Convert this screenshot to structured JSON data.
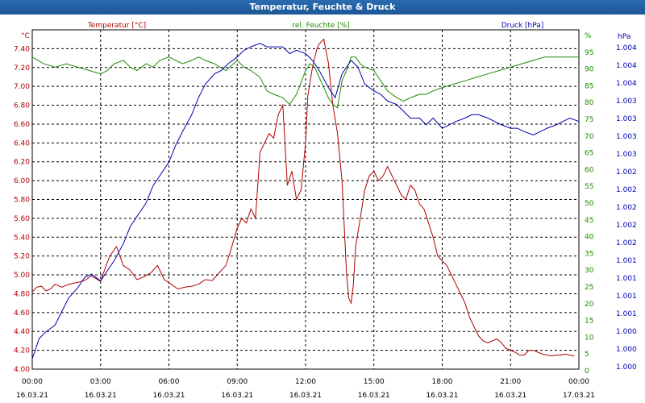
{
  "window_title": "Temperatur, Feuchte & Druck",
  "chart_data": {
    "type": "line",
    "title": "Temperatur, Feuchte & Druck",
    "grid": true,
    "x_ticks": [
      {
        "hour": 0,
        "time": "00:00",
        "date": "16.03.21"
      },
      {
        "hour": 3,
        "time": "03:00",
        "date": "16.03.21"
      },
      {
        "hour": 6,
        "time": "06:00",
        "date": "16.03.21"
      },
      {
        "hour": 9,
        "time": "09:00",
        "date": "16.03.21"
      },
      {
        "hour": 12,
        "time": "12:00",
        "date": "16.03.21"
      },
      {
        "hour": 15,
        "time": "15:00",
        "date": "16.03.21"
      },
      {
        "hour": 18,
        "time": "18:00",
        "date": "16.03.21"
      },
      {
        "hour": 21,
        "time": "21:00",
        "date": "16.03.21"
      },
      {
        "hour": 24,
        "time": "00:00",
        "date": "17.03.21"
      }
    ],
    "xlim": [
      0,
      24
    ],
    "axes": {
      "temperature": {
        "unit": "°C",
        "ylim": [
          4.0,
          7.6
        ],
        "color": "#b00000",
        "tick_labels": [
          "4.00",
          "4.20",
          "4.40",
          "4.60",
          "4.80",
          "5.00",
          "5.20",
          "5.40",
          "5.60",
          "5.80",
          "6.00",
          "6.20",
          "6.40",
          "6.60",
          "6.80",
          "7.00",
          "7.20",
          "7.40"
        ]
      },
      "humidity": {
        "unit": "%",
        "ylim": [
          0,
          100
        ],
        "color": "#1e8a00",
        "tick_labels": [
          "0",
          "5",
          "10",
          "15",
          "20",
          "25",
          "30",
          "35",
          "40",
          "45",
          "50",
          "55",
          "60",
          "65",
          "70",
          "75",
          "80",
          "85",
          "90",
          "95",
          "%"
        ]
      },
      "pressure": {
        "unit": "hPa",
        "color": "#0000b0",
        "tick_labels": [
          "1.000",
          "1.000",
          "1.000",
          "1.001",
          "1.001",
          "1.001",
          "1.001",
          "1.002",
          "1.002",
          "1.002",
          "1.002",
          "1.002",
          "1.003",
          "1.003",
          "1.003",
          "1.003",
          "1.004",
          "1.004",
          "1.004"
        ]
      }
    },
    "series": [
      {
        "name": "Temperatur [°C]",
        "axis": "temperature",
        "color": "#b00000",
        "x": [
          0,
          0.2,
          0.4,
          0.6,
          0.8,
          1,
          1.3,
          1.6,
          2,
          2.3,
          2.6,
          3,
          3.2,
          3.4,
          3.7,
          4,
          4.3,
          4.6,
          4.9,
          5.2,
          5.5,
          5.8,
          6.1,
          6.4,
          6.7,
          7,
          7.3,
          7.6,
          7.9,
          8.2,
          8.5,
          8.7,
          9,
          9.2,
          9.4,
          9.6,
          9.8,
          10,
          10.2,
          10.4,
          10.6,
          10.8,
          11,
          11.2,
          11.4,
          11.6,
          11.8,
          12,
          12.1,
          12.3,
          12.5,
          12.6,
          12.8,
          13,
          13.2,
          13.4,
          13.6,
          13.8,
          13.9,
          14,
          14.1,
          14.2,
          14.4,
          14.6,
          14.8,
          15,
          15.2,
          15.4,
          15.6,
          15.8,
          16,
          16.2,
          16.4,
          16.6,
          16.8,
          17,
          17.2,
          17.4,
          17.6,
          17.8,
          18,
          18.2,
          18.4,
          18.6,
          18.8,
          19,
          19.2,
          19.4,
          19.6,
          19.8,
          20,
          20.2,
          20.4,
          20.6,
          20.8,
          21,
          21.2,
          21.4,
          21.6,
          21.8,
          22,
          22.2,
          22.4,
          22.6,
          22.8,
          23,
          23.2,
          23.4,
          23.6,
          23.8
        ],
        "y": [
          4.82,
          4.87,
          4.88,
          4.83,
          4.85,
          4.9,
          4.87,
          4.9,
          4.92,
          4.94,
          4.99,
          4.93,
          5.07,
          5.2,
          5.3,
          5.1,
          5.05,
          4.95,
          4.98,
          5.02,
          5.1,
          4.95,
          4.9,
          4.85,
          4.87,
          4.88,
          4.9,
          4.95,
          4.94,
          5.02,
          5.1,
          5.25,
          5.5,
          5.6,
          5.55,
          5.7,
          5.6,
          6.3,
          6.4,
          6.5,
          6.45,
          6.7,
          6.8,
          5.95,
          6.1,
          5.8,
          5.9,
          6.4,
          6.9,
          7.2,
          7.4,
          7.45,
          7.5,
          7.25,
          6.8,
          6.5,
          6.0,
          5.0,
          4.75,
          4.7,
          4.9,
          5.3,
          5.6,
          5.9,
          6.05,
          6.1,
          6.0,
          6.05,
          6.15,
          6.05,
          5.95,
          5.85,
          5.8,
          5.95,
          5.9,
          5.75,
          5.7,
          5.55,
          5.4,
          5.2,
          5.15,
          5.1,
          5.0,
          4.9,
          4.8,
          4.7,
          4.55,
          4.45,
          4.35,
          4.3,
          4.28,
          4.3,
          4.32,
          4.28,
          4.22,
          4.2,
          4.18,
          4.15,
          4.15,
          4.2,
          4.2,
          4.18,
          4.16,
          4.15,
          4.14,
          4.15,
          4.15,
          4.16,
          4.15,
          4.14
        ]
      },
      {
        "name": "rel. Feuchte [%]",
        "axis": "humidity",
        "color": "#1e8a00",
        "x": [
          0,
          0.5,
          1,
          1.5,
          2,
          2.5,
          3,
          3.3,
          3.6,
          4,
          4.3,
          4.6,
          5,
          5.3,
          5.6,
          6,
          6.3,
          6.6,
          7,
          7.3,
          7.6,
          8,
          8.5,
          9,
          9.3,
          9.6,
          10,
          10.3,
          10.6,
          11,
          11.3,
          11.6,
          12,
          12.2,
          12.4,
          12.6,
          12.8,
          13,
          13.2,
          13.4,
          13.6,
          13.8,
          14,
          14.2,
          14.4,
          14.6,
          15,
          15.3,
          15.6,
          16,
          16.3,
          16.6,
          17,
          17.3,
          17.6,
          18,
          18.5,
          19,
          19.5,
          20,
          20.5,
          21,
          21.5,
          22,
          22.5,
          23,
          23.5,
          24
        ],
        "y": [
          92,
          90,
          89,
          90,
          89,
          88,
          87,
          88,
          90,
          91,
          89,
          88,
          90,
          89,
          91,
          92,
          91,
          90,
          91,
          92,
          91,
          90,
          88,
          91,
          89,
          88,
          86,
          82,
          81,
          80,
          78,
          81,
          88,
          90,
          89,
          86,
          83,
          80,
          78,
          77,
          85,
          88,
          92,
          92,
          90,
          89,
          88,
          85,
          82,
          80,
          79,
          80,
          81,
          81,
          82,
          83,
          84,
          85,
          86,
          87,
          88,
          89,
          90,
          91,
          92,
          92,
          92,
          92
        ]
      },
      {
        "name": "Druck [hPa]",
        "axis": "pressure",
        "scale": "axis-relative",
        "ylim": [
          0,
          100
        ],
        "color": "#0000b0",
        "x": [
          0,
          0.3,
          0.6,
          1,
          1.3,
          1.6,
          2,
          2.3,
          2.6,
          3,
          3.3,
          3.6,
          4,
          4.3,
          4.6,
          5,
          5.3,
          5.6,
          6,
          6.3,
          6.6,
          7,
          7.3,
          7.6,
          8,
          8.3,
          8.6,
          9,
          9.3,
          9.6,
          10,
          10.3,
          10.6,
          11,
          11.3,
          11.6,
          12,
          12.3,
          12.6,
          13,
          13.3,
          13.6,
          14,
          14.3,
          14.6,
          15,
          15.3,
          15.6,
          16,
          16.3,
          16.6,
          17,
          17.3,
          17.6,
          18,
          18.3,
          18.6,
          19,
          19.3,
          19.6,
          20,
          20.3,
          20.6,
          21,
          21.3,
          21.6,
          22,
          22.3,
          22.6,
          23,
          23.3,
          23.6,
          24
        ],
        "y": [
          3,
          9,
          11,
          13,
          17,
          21,
          24,
          27,
          28,
          26,
          29,
          32,
          37,
          42,
          45,
          49,
          54,
          57,
          61,
          66,
          70,
          75,
          80,
          84,
          87,
          88,
          90,
          92,
          94,
          95,
          96,
          95,
          95,
          95,
          93,
          94,
          93,
          91,
          88,
          83,
          80,
          87,
          91,
          89,
          84,
          82,
          81,
          79,
          78,
          76,
          74,
          74,
          72,
          74,
          71,
          72,
          73,
          74,
          75,
          75,
          74,
          73,
          72,
          71,
          71,
          70,
          69,
          70,
          71,
          72,
          73,
          74,
          73
        ]
      }
    ]
  }
}
